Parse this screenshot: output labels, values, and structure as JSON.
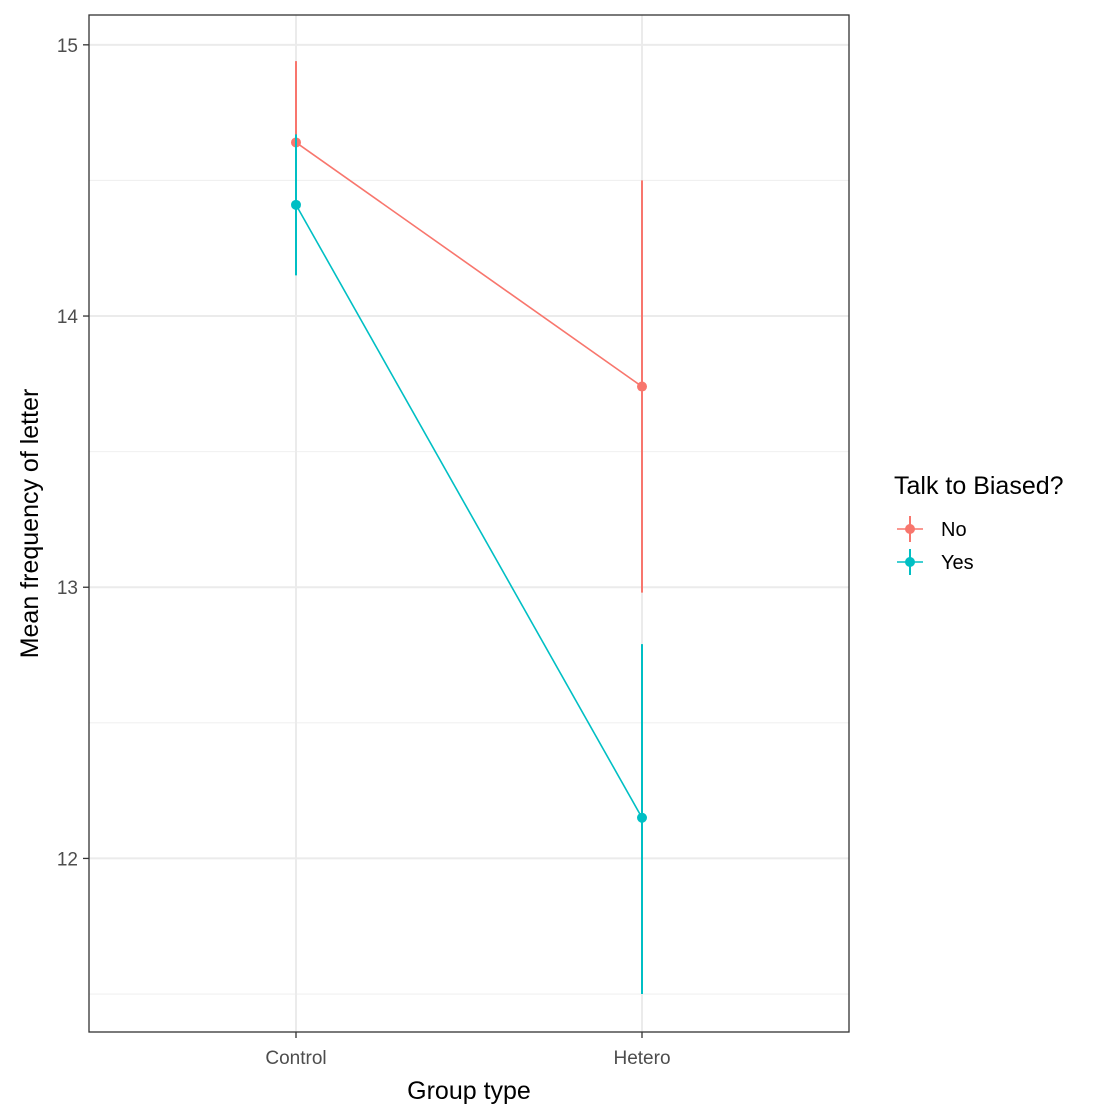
{
  "chart_data": {
    "type": "line",
    "xlabel": "Group type",
    "ylabel": "Mean frequency of letter",
    "categories": [
      "Control",
      "Hetero"
    ],
    "ylim": [
      11.36,
      15.11
    ],
    "y_ticks": [
      12,
      13,
      14,
      15
    ],
    "grid": true,
    "legend": {
      "title": "Talk to Biased?",
      "position": "right"
    },
    "series": [
      {
        "name": "No",
        "color": "#F8766D",
        "values": [
          14.64,
          13.74
        ],
        "lower": [
          14.34,
          12.98
        ],
        "upper": [
          14.94,
          14.5
        ]
      },
      {
        "name": "Yes",
        "color": "#00BFC4",
        "values": [
          14.41,
          12.15
        ],
        "lower": [
          14.15,
          11.5
        ],
        "upper": [
          14.67,
          12.79
        ]
      }
    ]
  }
}
